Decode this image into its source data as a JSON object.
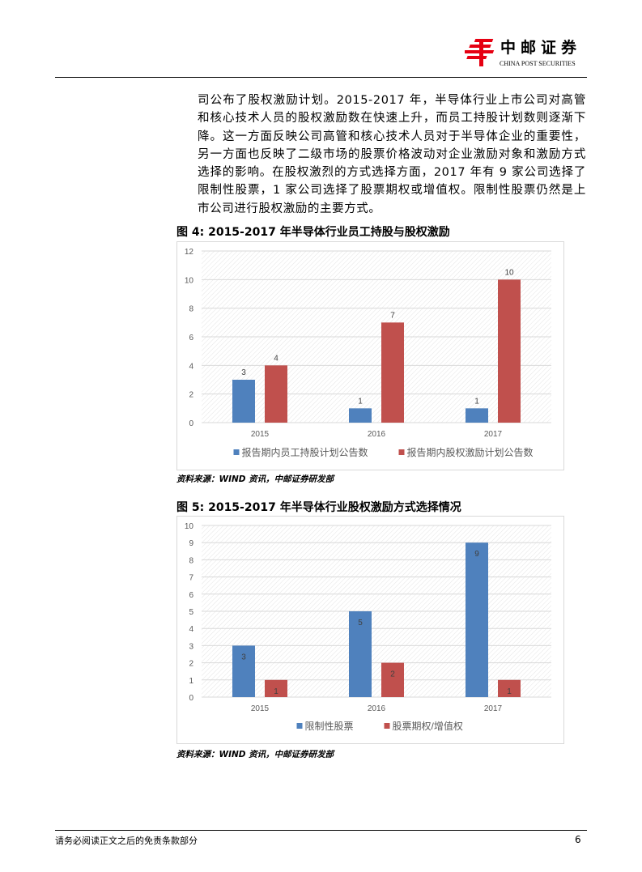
{
  "header": {
    "brand_cn": "中邮证券",
    "brand_en": "CHINA POST SECURITIES",
    "brand_color": "#e60012"
  },
  "paragraph": "司公布了股权激励计划。2015-2017 年，半导体行业上市公司对高管和核心技术人员的股权激励数在快速上升，而员工持股计划数则逐渐下降。这一方面反映公司高管和核心技术人员对于半导体企业的重要性，另一方面也反映了二级市场的股票价格波动对企业激励对象和激励方式选择的影响。在股权激烈的方式选择方面，2017 年有 9 家公司选择了限制性股票，1 家公司选择了股票期权或增值权。限制性股票仍然是上市公司进行股权激励的主要方式。",
  "figures": [
    {
      "title": "图 4:  2015-2017 年半导体行业员工持股与股权激励",
      "source": "资料来源：WIND 资讯，中邮证券研发部"
    },
    {
      "title": "图 5:  2015-2017 年半导体行业股权激励方式选择情况",
      "source": "资料来源：WIND 资讯，中邮证券研发部"
    }
  ],
  "chart_data": [
    {
      "type": "bar",
      "categories": [
        "2015",
        "2016",
        "2017"
      ],
      "ylim": [
        0,
        12
      ],
      "yticks": [
        0,
        2,
        4,
        6,
        8,
        10,
        12
      ],
      "grid": true,
      "legend": "bottom",
      "label_position": "above",
      "series": [
        {
          "name": "报告期内员工持股计划公告数",
          "color": "#4f81bd",
          "values": [
            3,
            1,
            1
          ]
        },
        {
          "name": "报告期内股权激励计划公告数",
          "color": "#c0504d",
          "values": [
            4,
            7,
            10
          ]
        }
      ]
    },
    {
      "type": "bar",
      "categories": [
        "2015",
        "2016",
        "2017"
      ],
      "ylim": [
        0,
        10
      ],
      "yticks": [
        0,
        1,
        2,
        3,
        4,
        5,
        6,
        7,
        8,
        9,
        10
      ],
      "grid": true,
      "legend": "bottom",
      "label_position": "inside",
      "series": [
        {
          "name": "限制性股票",
          "color": "#4f81bd",
          "values": [
            3,
            5,
            9
          ]
        },
        {
          "name": "股票期权/增值权",
          "color": "#c0504d",
          "values": [
            1,
            2,
            1
          ]
        }
      ]
    }
  ],
  "footer": {
    "disclaimer": "请务必阅读正文之后的免责条款部分",
    "page": "6"
  }
}
